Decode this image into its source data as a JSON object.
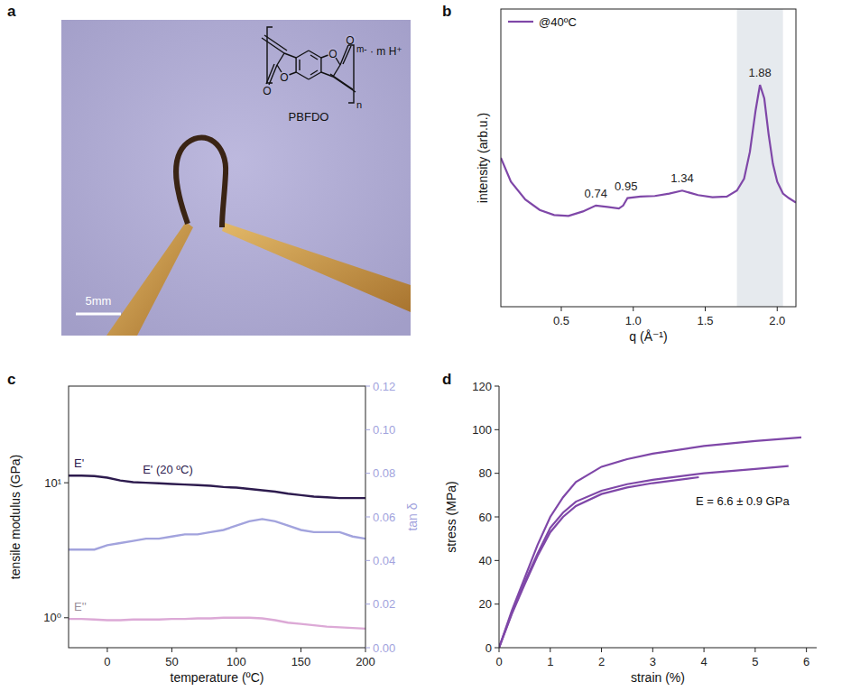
{
  "chart_data": [
    {
      "type": "image",
      "panel": "a",
      "compound": "PBFDO",
      "scale_bar": "5mm",
      "structure_labels": [
        "O",
        "O",
        "O",
        "O"
      ],
      "charge": "m-",
      "counterion": "· m H⁺",
      "repeat": "n"
    },
    {
      "type": "line",
      "panel": "b",
      "x_label": "q (Å⁻¹)",
      "y_label": "intensity (arb.u.)",
      "x": [
        0.08,
        0.15,
        0.25,
        0.35,
        0.45,
        0.55,
        0.65,
        0.74,
        0.82,
        0.9,
        0.93,
        0.96,
        1.05,
        1.15,
        1.25,
        1.34,
        1.45,
        1.55,
        1.65,
        1.72,
        1.77,
        1.81,
        1.85,
        1.88,
        1.91,
        1.94,
        1.97,
        2.0,
        2.04,
        2.08,
        2.13
      ],
      "series": [
        {
          "name": "@40ºC",
          "color": "#7f47a8",
          "values": [
            50,
            42,
            36,
            32.5,
            30.8,
            30.5,
            32,
            34,
            33.5,
            33,
            34,
            36.5,
            37,
            37.2,
            38,
            39,
            37.5,
            36.8,
            37,
            39,
            43,
            52,
            66,
            74.5,
            70,
            58,
            48,
            42,
            38,
            36.5,
            35
          ]
        }
      ],
      "xlim": [
        0.08,
        2.13
      ],
      "xticks": [
        0.5,
        {
          "value": 1.0,
          "label": "1.0"
        },
        1.5,
        {
          "value": 2.0,
          "label": "2.0"
        }
      ],
      "ylim": [
        0,
        100
      ],
      "tick_labels": "x",
      "legend": "top-left",
      "peak_labels": [
        0.74,
        0.95,
        1.34,
        1.88
      ],
      "shaded_range": [
        1.72,
        2.04
      ]
    },
    {
      "type": "line",
      "panel": "c",
      "x_label": "temperature (ºC)",
      "y_label": "tensile modulus (GPa)",
      "y2_label": "tan δ",
      "x": [
        -30,
        -20,
        -10,
        0,
        10,
        20,
        30,
        40,
        50,
        60,
        70,
        80,
        90,
        100,
        110,
        120,
        130,
        140,
        150,
        160,
        170,
        180,
        190,
        200
      ],
      "series": [
        {
          "name": "E'",
          "color": "#2d1b4e",
          "values": [
            11.3,
            11.3,
            11.2,
            10.9,
            10.4,
            10.1,
            10.0,
            9.9,
            9.8,
            9.7,
            9.6,
            9.5,
            9.3,
            9.2,
            9.0,
            8.8,
            8.6,
            8.3,
            8.1,
            7.9,
            7.8,
            7.7,
            7.7,
            7.7
          ]
        },
        {
          "name": "E''",
          "color": "#dca9d6",
          "values": [
            0.98,
            0.98,
            0.97,
            0.96,
            0.96,
            0.97,
            0.97,
            0.97,
            0.98,
            0.98,
            0.99,
            0.99,
            1.0,
            1.0,
            1.0,
            0.99,
            0.96,
            0.92,
            0.9,
            0.88,
            0.86,
            0.85,
            0.84,
            0.83
          ]
        },
        {
          "color": "#a2a3dd",
          "axis": "y2",
          "values": [
            0.045,
            0.045,
            0.045,
            0.047,
            0.048,
            0.049,
            0.05,
            0.05,
            0.051,
            0.052,
            0.052,
            0.053,
            0.054,
            0.056,
            0.058,
            0.059,
            0.058,
            0.056,
            0.054,
            0.053,
            0.053,
            0.053,
            0.051,
            0.05
          ]
        }
      ],
      "xlim": [
        -30,
        200
      ],
      "xticks": [
        0,
        50,
        100,
        150,
        200
      ],
      "log": "y",
      "ylim": [
        0.6,
        52
      ],
      "yticks": [
        {
          "value": 1,
          "label": "10⁰"
        },
        {
          "value": 10,
          "label": "10¹"
        }
      ],
      "y2lim": [
        0,
        0.12
      ],
      "y2ticks": [
        {
          "value": 0,
          "label": "0.00"
        },
        {
          "value": 0.02,
          "label": "0.02"
        },
        {
          "value": 0.04,
          "label": "0.04"
        },
        {
          "value": 0.06,
          "label": "0.06"
        },
        {
          "value": 0.08,
          "label": "0.08"
        },
        {
          "value": 0.1,
          "label": "0.10"
        },
        {
          "value": 0.12,
          "label": "0.12"
        }
      ],
      "annotations": [
        "E' (20 ºC)"
      ]
    },
    {
      "type": "line",
      "panel": "d",
      "x_label": "strain (%)",
      "y_label": "stress (MPa)",
      "series": [
        {
          "color": "#7f47a8",
          "x": [
            0,
            0.25,
            0.5,
            0.75,
            1,
            1.25,
            1.5,
            2,
            2.5,
            3,
            4,
            5,
            5.9
          ],
          "values": [
            0,
            17,
            32,
            47,
            60,
            69,
            76,
            83,
            86.5,
            89,
            92.5,
            94.8,
            96.5
          ]
        },
        {
          "color": "#7f47a8",
          "x": [
            0,
            0.25,
            0.5,
            0.75,
            1,
            1.25,
            1.5,
            2,
            2.5,
            3,
            4,
            5,
            5.65
          ],
          "values": [
            0,
            16,
            30,
            43,
            55,
            62,
            67,
            72,
            75,
            77,
            80,
            82,
            83.3
          ]
        },
        {
          "color": "#7f47a8",
          "x": [
            0,
            0.25,
            0.5,
            0.75,
            1,
            1.25,
            1.5,
            2,
            2.5,
            3,
            3.9
          ],
          "values": [
            0,
            15.5,
            29,
            42,
            53,
            60,
            65,
            70.5,
            73.5,
            75.5,
            78.2
          ]
        }
      ],
      "xlim": [
        0,
        6.2
      ],
      "xticks": [
        0,
        1,
        2,
        3,
        4,
        5,
        6
      ],
      "ylim": [
        0,
        120
      ],
      "yticks": [
        0,
        20,
        40,
        60,
        80,
        100,
        120
      ],
      "annotations": [
        "E = 6.6 ± 0.9 GPa"
      ]
    }
  ]
}
